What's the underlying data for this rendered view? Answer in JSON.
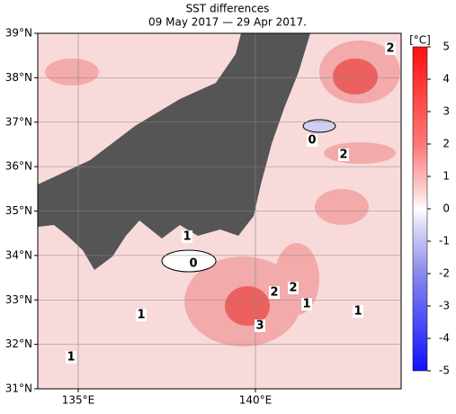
{
  "map": {
    "title": "SST differences",
    "subtitle": "09 May 2017 — 29 Apr 2017.",
    "lat_ticks": [
      {
        "value": 39,
        "label": "39°N"
      },
      {
        "value": 38,
        "label": "38°N"
      },
      {
        "value": 37,
        "label": "37°N"
      },
      {
        "value": 36,
        "label": "36°N"
      },
      {
        "value": 35,
        "label": "35°N"
      },
      {
        "value": 34,
        "label": "34°N"
      },
      {
        "value": 33,
        "label": "33°N"
      },
      {
        "value": 32,
        "label": "32°N"
      },
      {
        "value": 31,
        "label": "31°N"
      }
    ],
    "lon_ticks": [
      {
        "value": 135,
        "label": "135°E"
      },
      {
        "value": 140,
        "label": "140°E"
      }
    ],
    "colorbar": {
      "unit": "[°C]",
      "ticks": [
        5,
        4,
        3,
        2,
        1,
        0,
        -1,
        -2,
        -3,
        -4,
        -5
      ]
    },
    "contour_labels": [
      "2",
      "0",
      "2",
      "1",
      "0",
      "2",
      "2",
      "1",
      "1",
      "3",
      "1",
      "1"
    ]
  }
}
